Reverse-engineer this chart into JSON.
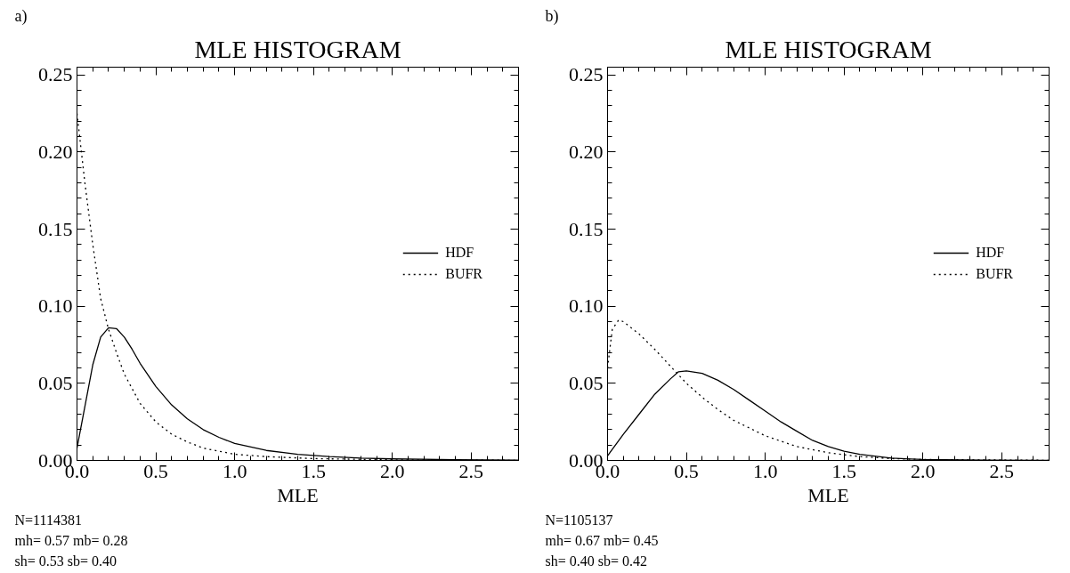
{
  "chart_data": [
    {
      "type": "line",
      "title": "MLE HISTOGRAM",
      "xlabel": "MLE",
      "annotations": [
        "a)",
        "N=1114381",
        "mh=   0.57 mb=   0.28",
        "sh=   0.53 sb=   0.40"
      ],
      "xlim": [
        0,
        2.8
      ],
      "ylim": [
        0,
        0.255
      ],
      "xticks": [
        {
          "value": 0,
          "label": "0.0"
        },
        0.5,
        {
          "value": 1,
          "label": "1.0"
        },
        1.5,
        {
          "value": 2,
          "label": "2.0"
        },
        2.5
      ],
      "yticks": [
        {
          "value": 0,
          "label": "0.00"
        },
        0.05,
        {
          "value": 0.1,
          "label": "0.10"
        },
        0.15,
        {
          "value": 0.2,
          "label": "0.20"
        },
        0.25
      ],
      "grid": false,
      "legend": "right",
      "marker": "none",
      "series": [
        {
          "name": "HDF",
          "color": "#000000",
          "line_style": "solid",
          "x": [
            0,
            0.05,
            0.1,
            0.15,
            0.2,
            0.25,
            0.3,
            0.35,
            0.4,
            0.5,
            0.6,
            0.7,
            0.8,
            0.9,
            1.0,
            1.2,
            1.4,
            1.6,
            1.8,
            2.0,
            2.4,
            2.8
          ],
          "values": [
            0.008,
            0.035,
            0.062,
            0.08,
            0.086,
            0.0855,
            0.08,
            0.072,
            0.063,
            0.048,
            0.036,
            0.027,
            0.02,
            0.015,
            0.011,
            0.0065,
            0.004,
            0.0025,
            0.0015,
            0.001,
            0.0005,
            0.0002
          ]
        },
        {
          "name": "BUFR",
          "color": "#000000",
          "line_style": "dotted",
          "x": [
            0,
            0.05,
            0.1,
            0.15,
            0.2,
            0.25,
            0.3,
            0.4,
            0.5,
            0.6,
            0.7,
            0.8,
            1.0,
            1.2,
            1.5,
            2.0,
            2.8
          ],
          "values": [
            0.225,
            0.18,
            0.14,
            0.105,
            0.085,
            0.07,
            0.056,
            0.037,
            0.025,
            0.017,
            0.012,
            0.008,
            0.004,
            0.0025,
            0.0012,
            0.0004,
            0.0001
          ]
        }
      ]
    },
    {
      "type": "line",
      "title": "MLE HISTOGRAM",
      "xlabel": "MLE",
      "annotations": [
        "b)",
        "N=1105137",
        "mh=   0.67 mb=   0.45",
        "sh=   0.40 sb=   0.42"
      ],
      "xlim": [
        0,
        2.8
      ],
      "ylim": [
        0,
        0.255
      ],
      "xticks": [
        {
          "value": 0,
          "label": "0.0"
        },
        0.5,
        {
          "value": 1,
          "label": "1.0"
        },
        1.5,
        {
          "value": 2,
          "label": "2.0"
        },
        2.5
      ],
      "yticks": [
        {
          "value": 0,
          "label": "0.00"
        },
        0.05,
        {
          "value": 0.1,
          "label": "0.10"
        },
        0.15,
        {
          "value": 0.2,
          "label": "0.20"
        },
        0.25
      ],
      "grid": false,
      "legend": "right",
      "marker": "none",
      "series": [
        {
          "name": "HDF",
          "color": "#000000",
          "line_style": "solid",
          "x": [
            0,
            0.1,
            0.2,
            0.3,
            0.4,
            0.45,
            0.5,
            0.6,
            0.7,
            0.8,
            0.9,
            1.0,
            1.1,
            1.2,
            1.3,
            1.4,
            1.5,
            1.6,
            1.8,
            2.0,
            2.4,
            2.8
          ],
          "values": [
            0.003,
            0.017,
            0.03,
            0.043,
            0.053,
            0.0575,
            0.058,
            0.0565,
            0.052,
            0.046,
            0.039,
            0.032,
            0.025,
            0.019,
            0.013,
            0.009,
            0.006,
            0.004,
            0.0015,
            0.0006,
            0.0002,
            0.0
          ]
        },
        {
          "name": "BUFR",
          "color": "#000000",
          "line_style": "dotted",
          "x": [
            0,
            0.03,
            0.07,
            0.1,
            0.2,
            0.3,
            0.4,
            0.5,
            0.6,
            0.7,
            0.8,
            1.0,
            1.2,
            1.4,
            1.6,
            1.8,
            2.0,
            2.8
          ],
          "values": [
            0.06,
            0.085,
            0.091,
            0.09,
            0.082,
            0.072,
            0.061,
            0.05,
            0.041,
            0.033,
            0.026,
            0.016,
            0.009,
            0.005,
            0.0025,
            0.0012,
            0.0006,
            0.0001
          ]
        }
      ]
    }
  ]
}
